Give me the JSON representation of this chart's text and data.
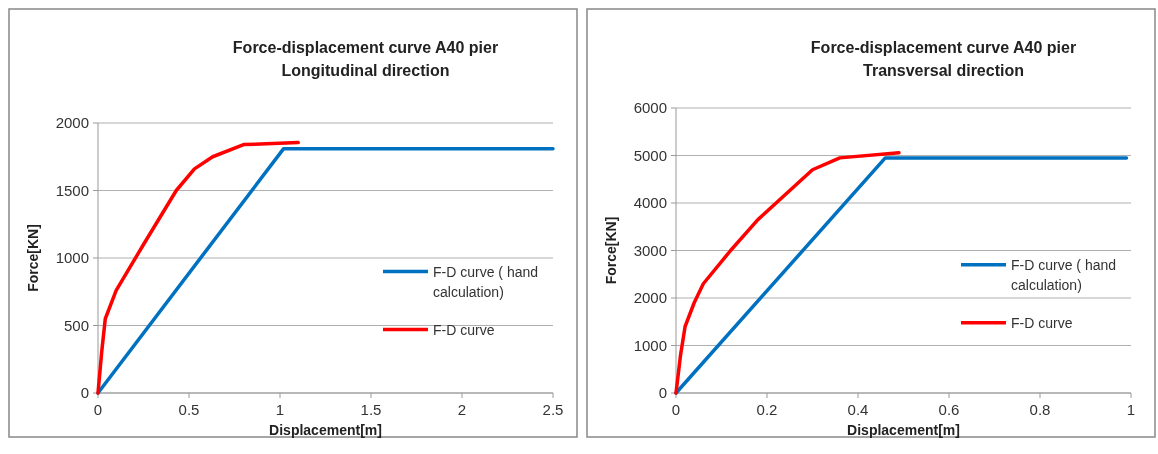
{
  "chart_data": [
    {
      "type": "line",
      "title": "Force-displacement curve A40 pier",
      "subtitle": "Longitudinal direction",
      "xlabel": "Displacement[m]",
      "ylabel": "Force[KN]",
      "xlim": [
        0,
        2.5
      ],
      "xticks": [
        0,
        0.5,
        1,
        1.5,
        2,
        2.5
      ],
      "ylim": [
        0,
        2000
      ],
      "yticks": [
        0,
        500,
        1000,
        1500,
        2000
      ],
      "grid": "y",
      "legend": "right",
      "marker": "none",
      "series": [
        {
          "name": "F-D curve ( hand calculation)",
          "color": "#0070c0",
          "x": [
            0,
            1.02,
            2.5
          ],
          "values": [
            0,
            1810,
            1810
          ]
        },
        {
          "name": "F-D curve",
          "color": "#ff0000",
          "x": [
            0,
            0.02,
            0.04,
            0.1,
            0.25,
            0.43,
            0.53,
            0.63,
            0.8,
            1.1
          ],
          "values": [
            0,
            300,
            550,
            760,
            1100,
            1500,
            1660,
            1750,
            1840,
            1855
          ]
        }
      ]
    },
    {
      "type": "line",
      "title": "Force-displacement curve A40 pier",
      "subtitle": "Transversal direction",
      "xlabel": "Displacement[m]",
      "ylabel": "Force[KN]",
      "xlim": [
        0,
        1
      ],
      "xticks": [
        0,
        0.2,
        0.4,
        0.6,
        0.8,
        1
      ],
      "ylim": [
        0,
        6000
      ],
      "yticks": [
        0,
        1000,
        2000,
        3000,
        4000,
        5000,
        6000
      ],
      "grid": "y",
      "legend": "right",
      "marker": "none",
      "series": [
        {
          "name": "F-D curve ( hand calculation)",
          "color": "#0070c0",
          "x": [
            0,
            0.46,
            0.99
          ],
          "values": [
            0,
            4950,
            4950
          ]
        },
        {
          "name": "F-D curve",
          "color": "#ff0000",
          "x": [
            0,
            0.01,
            0.02,
            0.04,
            0.06,
            0.12,
            0.18,
            0.3,
            0.36,
            0.49
          ],
          "values": [
            0,
            800,
            1400,
            1900,
            2300,
            3000,
            3650,
            4700,
            4950,
            5060
          ]
        }
      ]
    }
  ]
}
